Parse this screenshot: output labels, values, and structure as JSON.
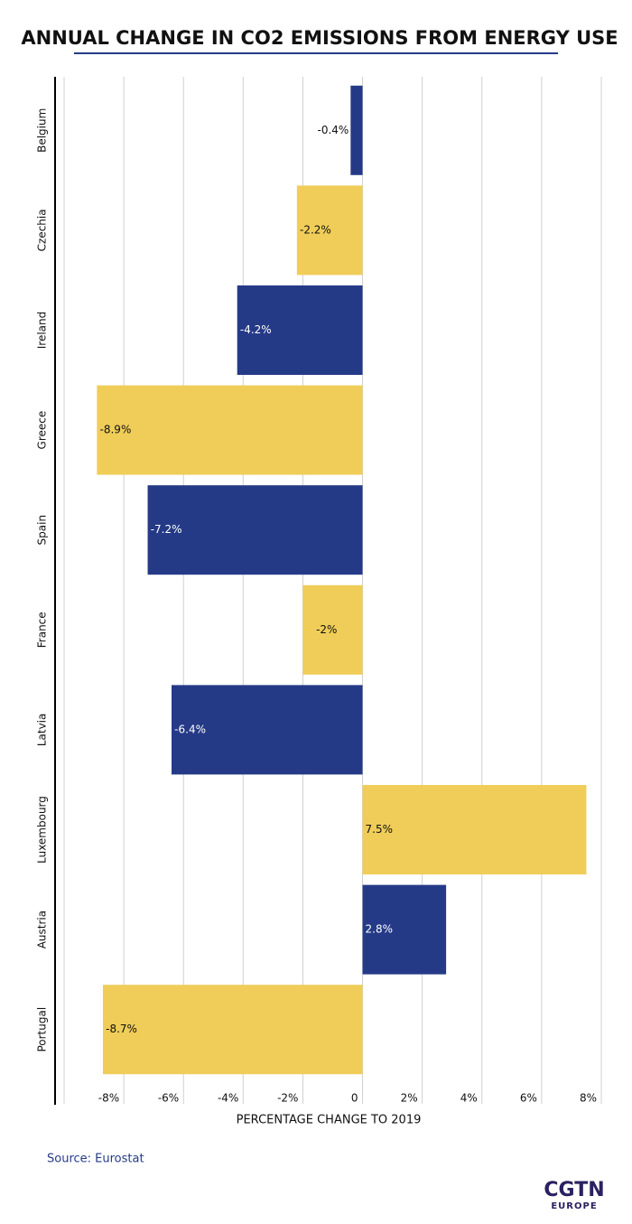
{
  "chart_data": {
    "type": "hbar",
    "title": "ANNUAL CHANGE IN CO2 EMISSIONS FROM ENERGY USE",
    "x_label": "PERCENTAGE CHANGE TO 2019",
    "source": "Source: Eurostat",
    "logo": {
      "name": "CGTN",
      "sub": "EUROPE"
    },
    "categories": [
      "Belgium",
      "Czechia",
      "Ireland",
      "Greece",
      "Spain",
      "France",
      "Latvia",
      "Luxembourg",
      "Austria",
      "Portugal"
    ],
    "values": [
      -0.4,
      -2.2,
      -4.2,
      -8.9,
      -7.2,
      -2,
      -6.4,
      7.5,
      2.8,
      -8.7
    ],
    "value_labels": [
      "-0.4%",
      "-2.2%",
      "-4.2%",
      "-8.9%",
      "-7.2%",
      "-2%",
      "-6.4%",
      "7.5%",
      "2.8%",
      "-8.7%"
    ],
    "colors": [
      "#253a87",
      "#efcd58",
      "#253a87",
      "#efcd58",
      "#253a87",
      "#efcd58",
      "#253a87",
      "#efcd58",
      "#253a87",
      "#efcd58"
    ],
    "xlim": [
      -10,
      8
    ],
    "xticks": [
      {
        "value": -8,
        "label": "-8%"
      },
      {
        "value": -6,
        "label": "-6%"
      },
      {
        "value": -4,
        "label": "-4%"
      },
      {
        "value": -2,
        "label": "-2%"
      },
      0,
      {
        "value": 2,
        "label": "2%"
      },
      {
        "value": 4,
        "label": "4%"
      },
      {
        "value": 6,
        "label": "6%"
      },
      {
        "value": 8,
        "label": "8%"
      }
    ],
    "grid": true
  }
}
